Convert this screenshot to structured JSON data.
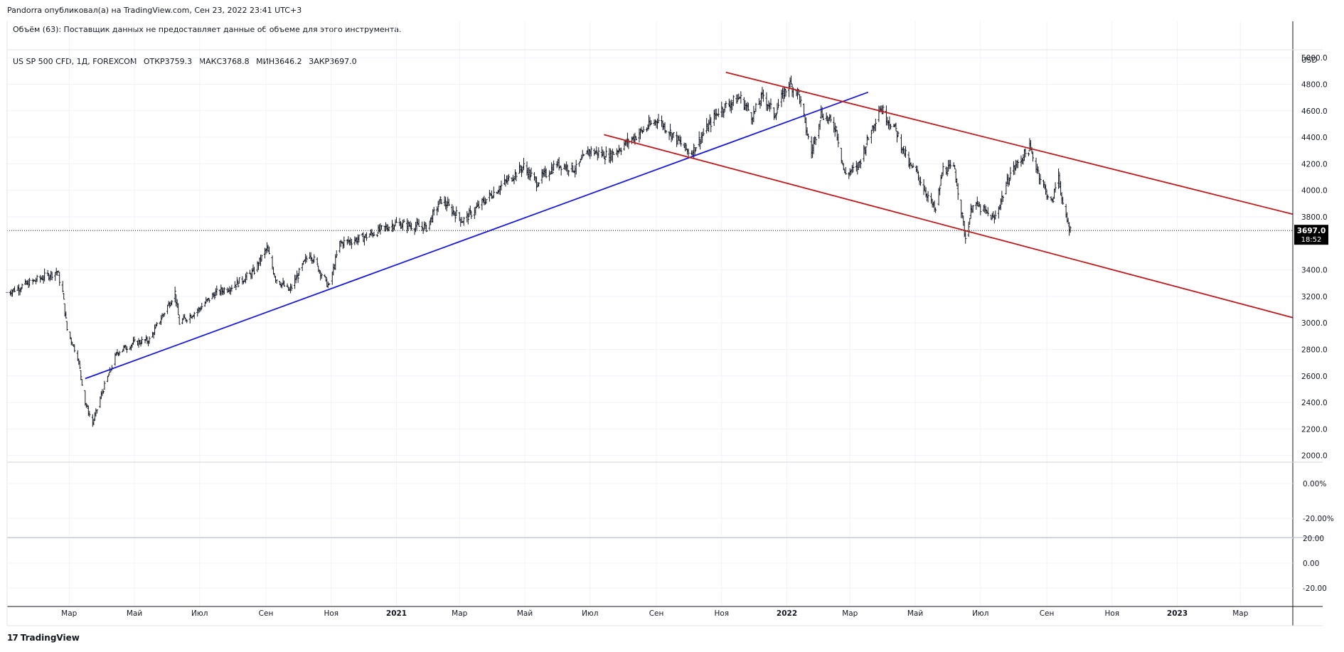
{
  "header": {
    "published": "Pandorra опубликовал(а) на TradingView.com, Сен 23, 2022 23:41 UTC+3"
  },
  "legend": {
    "volume_note": "Объём (63): Поставщик данных не предоставляет данные об объеме для этого инструмента.",
    "symbol": "US SP 500 CFD, 1Д, FOREXCOM",
    "open": "ОТКР3759.3",
    "high": "МАКС3768.8",
    "low": "МИН3646.2",
    "close": "ЗАКР3697.0"
  },
  "footer": {
    "logo_mark": "17",
    "logo_text": "TradingView"
  },
  "colors": {
    "candles": "#131722",
    "support_line": "#1a1adb",
    "channel_lines": "#c0181b",
    "grid": "#f0f3fa",
    "last_price_bg": "#000000"
  },
  "chart_data": {
    "type": "ohlc",
    "currency": "USD",
    "last_price": "3697.0",
    "countdown": "18:52",
    "y_ticks": [
      "5000.0",
      "4800.0",
      "4600.0",
      "4400.0",
      "4200.0",
      "4000.0",
      "3800.0",
      "3400.0",
      "3200.0",
      "3000.0",
      "2800.0",
      "2600.0",
      "2400.0",
      "2200.0",
      "2000.0"
    ],
    "ylim": [
      1950,
      5060
    ],
    "x_labels": [
      {
        "label": "Мар",
        "bold": false
      },
      {
        "label": "Май",
        "bold": false
      },
      {
        "label": "Июл",
        "bold": false
      },
      {
        "label": "Сен",
        "bold": false
      },
      {
        "label": "Ноя",
        "bold": false
      },
      {
        "label": "2021",
        "bold": true
      },
      {
        "label": "Мар",
        "bold": false
      },
      {
        "label": "Май",
        "bold": false
      },
      {
        "label": "Июл",
        "bold": false
      },
      {
        "label": "Сен",
        "bold": false
      },
      {
        "label": "Ноя",
        "bold": false
      },
      {
        "label": "2022",
        "bold": true
      },
      {
        "label": "Мар",
        "bold": false
      },
      {
        "label": "Май",
        "bold": false
      },
      {
        "label": "Июл",
        "bold": false
      },
      {
        "label": "Сен",
        "bold": false
      },
      {
        "label": "Ноя",
        "bold": false
      },
      {
        "label": "2023",
        "bold": true
      },
      {
        "label": "Мар",
        "bold": false
      }
    ],
    "x_label_dates": [
      "2020-03-01",
      "2020-05-01",
      "2020-07-01",
      "2020-09-01",
      "2020-11-01",
      "2021-01-01",
      "2021-03-01",
      "2021-05-01",
      "2021-07-01",
      "2021-09-01",
      "2021-11-01",
      "2022-01-01",
      "2022-03-01",
      "2022-05-01",
      "2022-07-01",
      "2022-09-01",
      "2022-11-01",
      "2023-01-01",
      "2023-03-01"
    ],
    "xlim": [
      "2020-01-03",
      "2023-04-19"
    ],
    "sub_panes": [
      {
        "ticks": [
          "0.00%",
          "-20.00%"
        ]
      },
      {
        "ticks": [
          "20.00",
          "0.00",
          "-20.00"
        ]
      }
    ],
    "price_path": [
      [
        "2020-01-03",
        3230
      ],
      [
        "2020-01-24",
        3300
      ],
      [
        "2020-02-19",
        3390
      ],
      [
        "2020-02-24",
        3230
      ],
      [
        "2020-02-28",
        2950
      ],
      [
        "2020-03-09",
        2750
      ],
      [
        "2020-03-16",
        2400
      ],
      [
        "2020-03-23",
        2240
      ],
      [
        "2020-04-01",
        2480
      ],
      [
        "2020-04-15",
        2780
      ],
      [
        "2020-05-01",
        2850
      ],
      [
        "2020-05-15",
        2870
      ],
      [
        "2020-06-08",
        3230
      ],
      [
        "2020-06-12",
        3000
      ],
      [
        "2020-06-30",
        3100
      ],
      [
        "2020-07-15",
        3220
      ],
      [
        "2020-08-01",
        3280
      ],
      [
        "2020-08-20",
        3380
      ],
      [
        "2020-09-02",
        3560
      ],
      [
        "2020-09-10",
        3340
      ],
      [
        "2020-09-23",
        3240
      ],
      [
        "2020-10-12",
        3530
      ],
      [
        "2020-10-30",
        3270
      ],
      [
        "2020-11-09",
        3600
      ],
      [
        "2020-11-30",
        3640
      ],
      [
        "2020-12-31",
        3750
      ],
      [
        "2021-01-29",
        3720
      ],
      [
        "2021-02-12",
        3930
      ],
      [
        "2021-03-04",
        3770
      ],
      [
        "2021-03-31",
        3970
      ],
      [
        "2021-04-30",
        4180
      ],
      [
        "2021-05-12",
        4060
      ],
      [
        "2021-05-31",
        4200
      ],
      [
        "2021-06-18",
        4160
      ],
      [
        "2021-06-30",
        4300
      ],
      [
        "2021-07-19",
        4260
      ],
      [
        "2021-08-31",
        4520
      ],
      [
        "2021-09-02",
        4540
      ],
      [
        "2021-09-30",
        4300
      ],
      [
        "2021-10-04",
        4290
      ],
      [
        "2021-10-29",
        4600
      ],
      [
        "2021-11-18",
        4700
      ],
      [
        "2021-11-30",
        4560
      ],
      [
        "2021-12-10",
        4720
      ],
      [
        "2021-12-20",
        4570
      ],
      [
        "2022-01-03",
        4810
      ],
      [
        "2022-01-12",
        4730
      ],
      [
        "2022-01-24",
        4280
      ],
      [
        "2022-02-02",
        4590
      ],
      [
        "2022-02-16",
        4470
      ],
      [
        "2022-02-24",
        4120
      ],
      [
        "2022-03-08",
        4170
      ],
      [
        "2022-03-29",
        4630
      ],
      [
        "2022-04-13",
        4450
      ],
      [
        "2022-04-26",
        4180
      ],
      [
        "2022-05-02",
        4140
      ],
      [
        "2022-05-20",
        3840
      ],
      [
        "2022-05-27",
        4160
      ],
      [
        "2022-06-07",
        4160
      ],
      [
        "2022-06-17",
        3640
      ],
      [
        "2022-06-24",
        3910
      ],
      [
        "2022-07-14",
        3780
      ],
      [
        "2022-07-29",
        4130
      ],
      [
        "2022-08-16",
        4320
      ],
      [
        "2022-08-29",
        4030
      ],
      [
        "2022-09-06",
        3900
      ],
      [
        "2022-09-12",
        4140
      ],
      [
        "2022-09-16",
        3870
      ],
      [
        "2022-09-23",
        3697
      ]
    ],
    "trend_lines": [
      {
        "name": "support",
        "color": "#1a1adb",
        "from": [
          "2020-03-16",
          2580
        ],
        "to": [
          "2022-03-18",
          4740
        ]
      },
      {
        "name": "channel-upper",
        "color": "#c0181b",
        "from": [
          "2021-11-05",
          4890
        ],
        "to": [
          "2023-04-19",
          3820
        ]
      },
      {
        "name": "channel-lower",
        "color": "#c0181b",
        "from": [
          "2021-07-14",
          4420
        ],
        "to": [
          "2023-04-19",
          3040
        ]
      }
    ]
  }
}
